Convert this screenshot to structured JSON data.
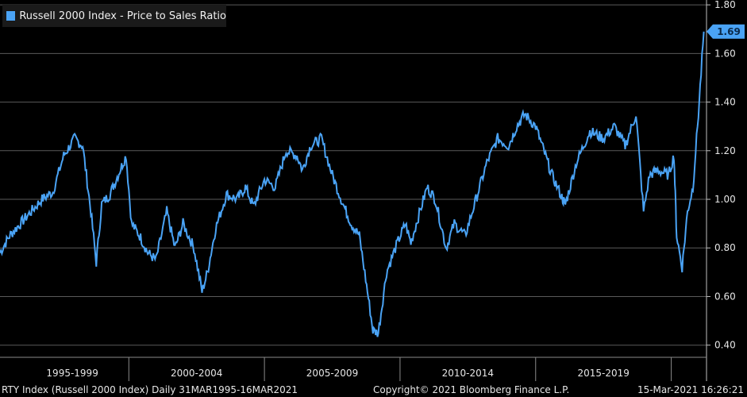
{
  "chart_data": {
    "type": "line",
    "title": "Russell 2000 Index - Price to Sales Ratio",
    "series_name": "Russell 2000 Index - Price to Sales Ratio",
    "ylim": [
      0.35,
      1.82
    ],
    "xlim": [
      1995.25,
      2021.3
    ],
    "y_ticks": [
      0.4,
      0.6,
      0.8,
      1.0,
      1.2,
      1.4,
      1.6,
      1.8
    ],
    "y_tick_labels": [
      "0.40",
      "0.60",
      "0.80",
      "1.00",
      "1.20",
      "1.40",
      "1.60",
      "1.80"
    ],
    "x_period_labels": [
      "1995-1999",
      "2000-2004",
      "2005-2009",
      "2010-2014",
      "2015-2019"
    ],
    "grid": true,
    "legend": "top-left",
    "last_value": 1.69,
    "last_value_label": "1.69",
    "color": "#4aa3f5",
    "x": [
      1995.25,
      1995.6,
      1996.0,
      1996.4,
      1996.8,
      1997.2,
      1997.6,
      1998.0,
      1998.3,
      1998.6,
      1998.8,
      1999.0,
      1999.3,
      1999.6,
      1999.9,
      2000.1,
      2000.4,
      2000.7,
      2001.0,
      2001.4,
      2001.7,
      2002.0,
      2002.4,
      2002.7,
      2002.9,
      2003.2,
      2003.6,
      2004.0,
      2004.3,
      2004.6,
      2005.0,
      2005.4,
      2005.8,
      2006.2,
      2006.4,
      2006.7,
      2007.1,
      2007.5,
      2007.9,
      2008.2,
      2008.5,
      2008.8,
      2009.0,
      2009.2,
      2009.5,
      2009.9,
      2010.2,
      2010.4,
      2010.6,
      2011.0,
      2011.3,
      2011.7,
      2012.0,
      2012.4,
      2012.8,
      2013.2,
      2013.6,
      2014.0,
      2014.3,
      2014.6,
      2015.0,
      2015.3,
      2015.6,
      2016.0,
      2016.1,
      2016.5,
      2017.0,
      2017.5,
      2017.9,
      2018.3,
      2018.7,
      2018.98,
      2019.2,
      2019.5,
      2019.9,
      2020.1,
      2020.2,
      2020.4,
      2020.6,
      2020.8,
      2021.0,
      2021.2
    ],
    "values": [
      0.78,
      0.85,
      0.9,
      0.95,
      1.0,
      1.03,
      1.18,
      1.25,
      1.22,
      0.95,
      0.74,
      0.98,
      1.02,
      1.1,
      1.18,
      0.9,
      0.85,
      0.78,
      0.75,
      0.95,
      0.8,
      0.9,
      0.8,
      0.62,
      0.7,
      0.88,
      1.02,
      1.0,
      1.05,
      0.97,
      1.08,
      1.05,
      1.2,
      1.18,
      1.12,
      1.22,
      1.25,
      1.1,
      0.98,
      0.9,
      0.85,
      0.62,
      0.46,
      0.45,
      0.7,
      0.82,
      0.9,
      0.82,
      0.9,
      1.05,
      1.0,
      0.8,
      0.9,
      0.85,
      1.0,
      1.15,
      1.25,
      1.22,
      1.3,
      1.35,
      1.3,
      1.2,
      1.1,
      1.0,
      0.98,
      1.15,
      1.28,
      1.25,
      1.3,
      1.22,
      1.35,
      0.95,
      1.1,
      1.12,
      1.1,
      1.18,
      0.85,
      0.72,
      0.95,
      1.05,
      1.35,
      1.69
    ]
  },
  "footer": {
    "left": "RTY Index (Russell 2000 Index)  Daily 31MAR1995-16MAR2021",
    "center": "Copyright© 2021 Bloomberg Finance L.P.",
    "right": "15-Mar-2021 16:26:21"
  }
}
